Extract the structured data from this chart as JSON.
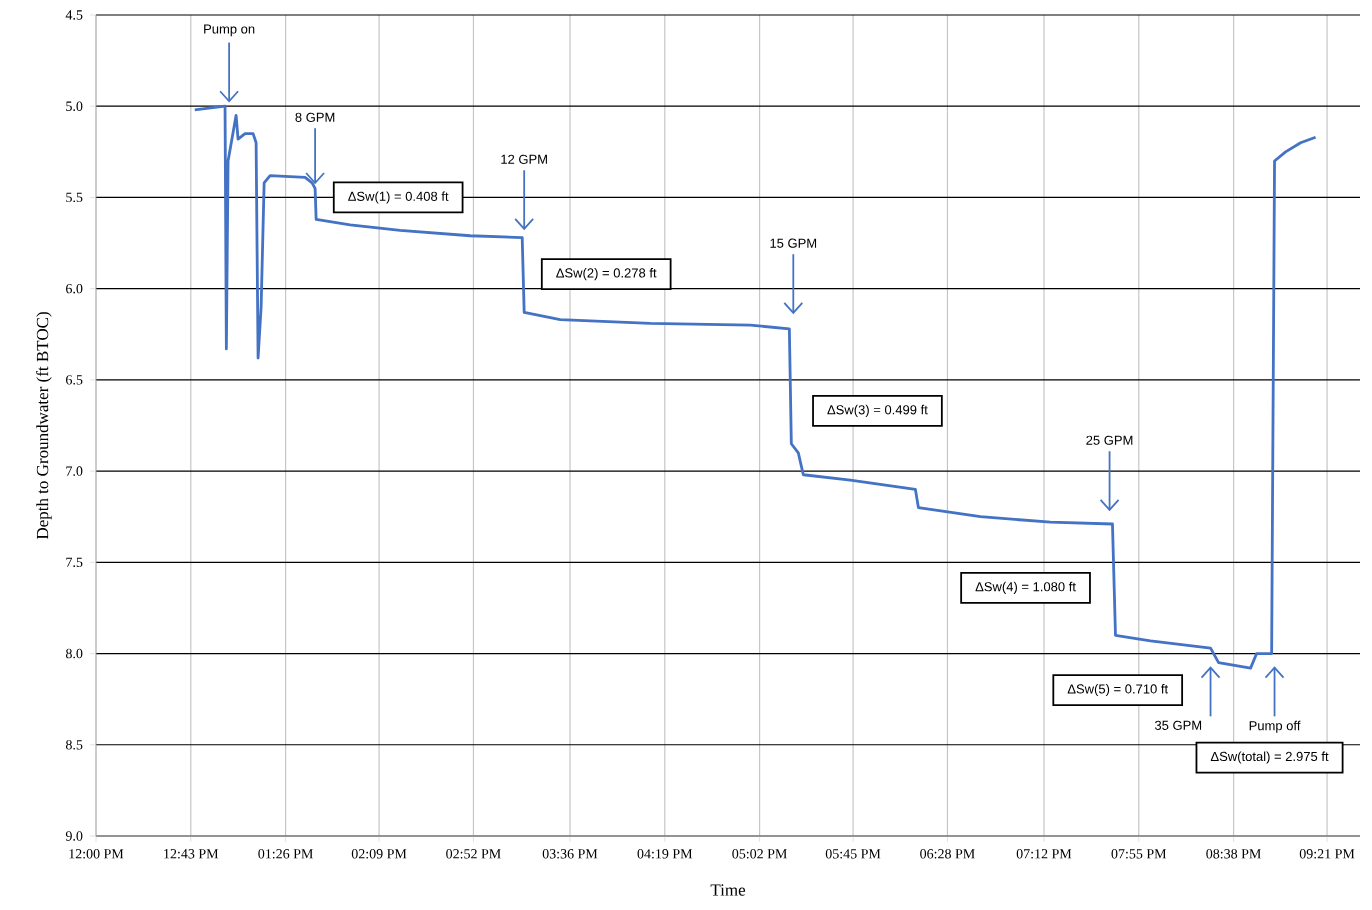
{
  "chart_data": {
    "type": "line",
    "xlabel": "Time",
    "ylabel": "Depth to Groundwater (ft BTOC)",
    "x": [
      12.75,
      12.98,
      12.99,
      13.003,
      13.064,
      13.079,
      13.132,
      13.193,
      13.216,
      13.231,
      13.254,
      13.277,
      13.322,
      13.588,
      13.641,
      13.664,
      13.672,
      13.93,
      14.31,
      14.842,
      15.237,
      15.252,
      15.526,
      16.21,
      16.97,
      17.266,
      17.281,
      17.334,
      17.372,
      17.729,
      18.223,
      18.246,
      18.717,
      19.249,
      19.72,
      19.743,
      20.009,
      20.465,
      20.526,
      20.769,
      20.815,
      20.929,
      20.951,
      21.035,
      21.149,
      21.263
    ],
    "series": [
      {
        "color": "#4472c4",
        "values": [
          5.02,
          5.0,
          6.33,
          5.3,
          5.05,
          5.18,
          5.15,
          5.15,
          5.2,
          6.38,
          6.1,
          5.42,
          5.38,
          5.39,
          5.42,
          5.45,
          5.62,
          5.65,
          5.68,
          5.71,
          5.72,
          6.13,
          6.17,
          6.19,
          6.2,
          6.22,
          6.85,
          6.9,
          7.02,
          7.05,
          7.1,
          7.2,
          7.25,
          7.28,
          7.29,
          7.9,
          7.93,
          7.97,
          8.05,
          8.08,
          8.0,
          8.0,
          5.3,
          5.25,
          5.2,
          5.17
        ]
      }
    ],
    "xlim": [
      12,
      21.6
    ],
    "xticks": [
      {
        "value": 12,
        "label": "12:00 PM"
      },
      {
        "value": 12.72,
        "label": "12:43 PM"
      },
      {
        "value": 13.44,
        "label": "01:26 PM"
      },
      {
        "value": 14.15,
        "label": "02:09 PM"
      },
      {
        "value": 14.8667,
        "label": "02:52 PM"
      },
      {
        "value": 15.6,
        "label": "03:36 PM"
      },
      {
        "value": 16.32,
        "label": "04:19 PM"
      },
      {
        "value": 17.04,
        "label": "05:02 PM"
      },
      {
        "value": 17.75,
        "label": "05:45 PM"
      },
      {
        "value": 18.4667,
        "label": "06:28 PM"
      },
      {
        "value": 19.2,
        "label": "07:12 PM"
      },
      {
        "value": 19.92,
        "label": "07:55 PM"
      },
      {
        "value": 20.64,
        "label": "08:38 PM"
      },
      {
        "value": 21.35,
        "label": "09:21 PM"
      }
    ],
    "ylim": [
      9.0,
      4.5
    ],
    "yticks": [
      {
        "value": 4.5,
        "label": "4.5"
      },
      {
        "value": 5,
        "label": "5.0"
      },
      {
        "value": 5.5,
        "label": "5.5"
      },
      {
        "value": 6,
        "label": "6.0"
      },
      {
        "value": 6.5,
        "label": "6.5"
      },
      {
        "value": 7,
        "label": "7.0"
      },
      {
        "value": 7.5,
        "label": "7.5"
      },
      {
        "value": 8,
        "label": "8.0"
      },
      {
        "value": 8.5,
        "label": "8.5"
      },
      {
        "value": 9,
        "label": "9.0"
      }
    ],
    "grid": true,
    "annotations": [
      "Pump on",
      {
        "text": "8 GPM",
        "x": 13.664,
        "y": 5.45
      },
      "12 GPM",
      "15 GPM",
      "25 GPM",
      "35 GPM",
      "Pump off",
      "ΔSw(1) = 0.408 ft",
      "ΔSw(2) = 0.278  ft",
      "ΔSw(3) = 0.499 ft",
      "ΔSw(4) = 1.080 ft",
      "ΔSw(5) = 0.710 ft",
      "ΔSw(total) = 2.975 ft"
    ]
  }
}
